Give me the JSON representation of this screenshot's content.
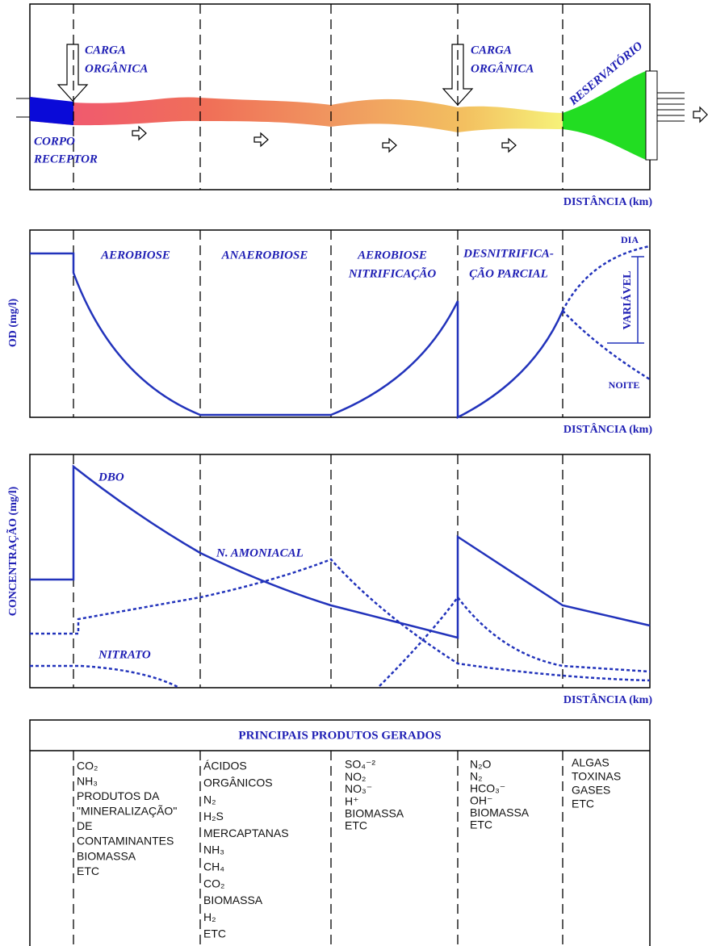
{
  "panel1": {
    "carga_left": [
      "CARGA",
      "ORGÂNICA"
    ],
    "carga_right": [
      "CARGA",
      "ORGÂNICA"
    ],
    "reservatorio": "RESERVATÓRIO",
    "corpo_receptor": [
      "CORPO",
      "RECEPTOR"
    ],
    "x_label": "DISTÂNCIA (km)"
  },
  "panel2": {
    "y_label": "OD (mg/l)",
    "zones": [
      "AEROBIOSE",
      "ANAEROBIOSE",
      "AEROBIOSE",
      "NITRIFICAÇÃO",
      "DESNITRIFICA-",
      "ÇÃO PARCIAL"
    ],
    "dia": "DIA",
    "noite": "NOITE",
    "variavel": "VARIÁVEL",
    "x_label": "DISTÂNCIA (km)"
  },
  "panel3": {
    "y_label": "CONCENTRAÇÃO (mg/l)",
    "dbo": "DBO",
    "amoniacal": "N. AMONIACAL",
    "nitrato": "NITRATO",
    "x_label": "DISTÂNCIA (km)"
  },
  "products": {
    "title": "PRINCIPAIS PRODUTOS GERADOS",
    "columns": [
      [
        "CO₂",
        "NH₃",
        "PRODUTOS DA",
        "\"MINERALIZAÇÃO\"",
        "DE",
        "CONTAMINANTES",
        "BIOMASSA",
        "ETC"
      ],
      [
        "ÁCIDOS",
        "ORGÂNICOS",
        "N₂",
        "H₂S",
        "MERCAPTANAS",
        "NH₃",
        "CH₄",
        "CO₂",
        "BIOMASSA",
        "H₂",
        "ETC"
      ],
      [
        "SO₄⁻²",
        "NO₂",
        "NO₃⁻",
        "H⁺",
        "BIOMASSA",
        "ETC"
      ],
      [
        "N₂O",
        "N₂",
        "HCO₃⁻",
        "OH⁻",
        "BIOMASSA",
        "ETC"
      ],
      [
        "ALGAS",
        "TOXINAS",
        "GASES",
        "ETC"
      ]
    ]
  }
}
